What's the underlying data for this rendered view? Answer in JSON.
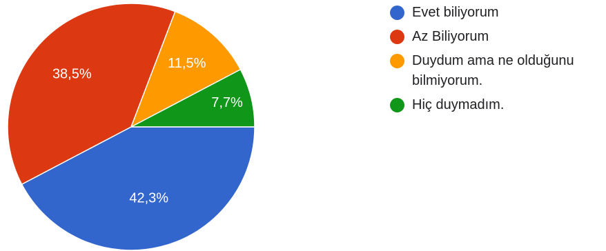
{
  "chart_data": {
    "type": "pie",
    "slices": [
      {
        "label": "Evet biliyorum",
        "value": 42.3,
        "value_label": "42,3%",
        "color": "#3366cc"
      },
      {
        "label": "Az Biliyorum",
        "value": 38.5,
        "value_label": "38,5%",
        "color": "#dc3912"
      },
      {
        "label": "Duydum ama ne olduğunu bilmiyorum.",
        "value": 11.5,
        "value_label": "11,5%",
        "color": "#ff9900"
      },
      {
        "label": "Hiç duymadım.",
        "value": 7.7,
        "value_label": "7,7%",
        "color": "#109618"
      }
    ],
    "legend_position": "right",
    "start_angle_deg": 0,
    "direction": "clockwise"
  }
}
